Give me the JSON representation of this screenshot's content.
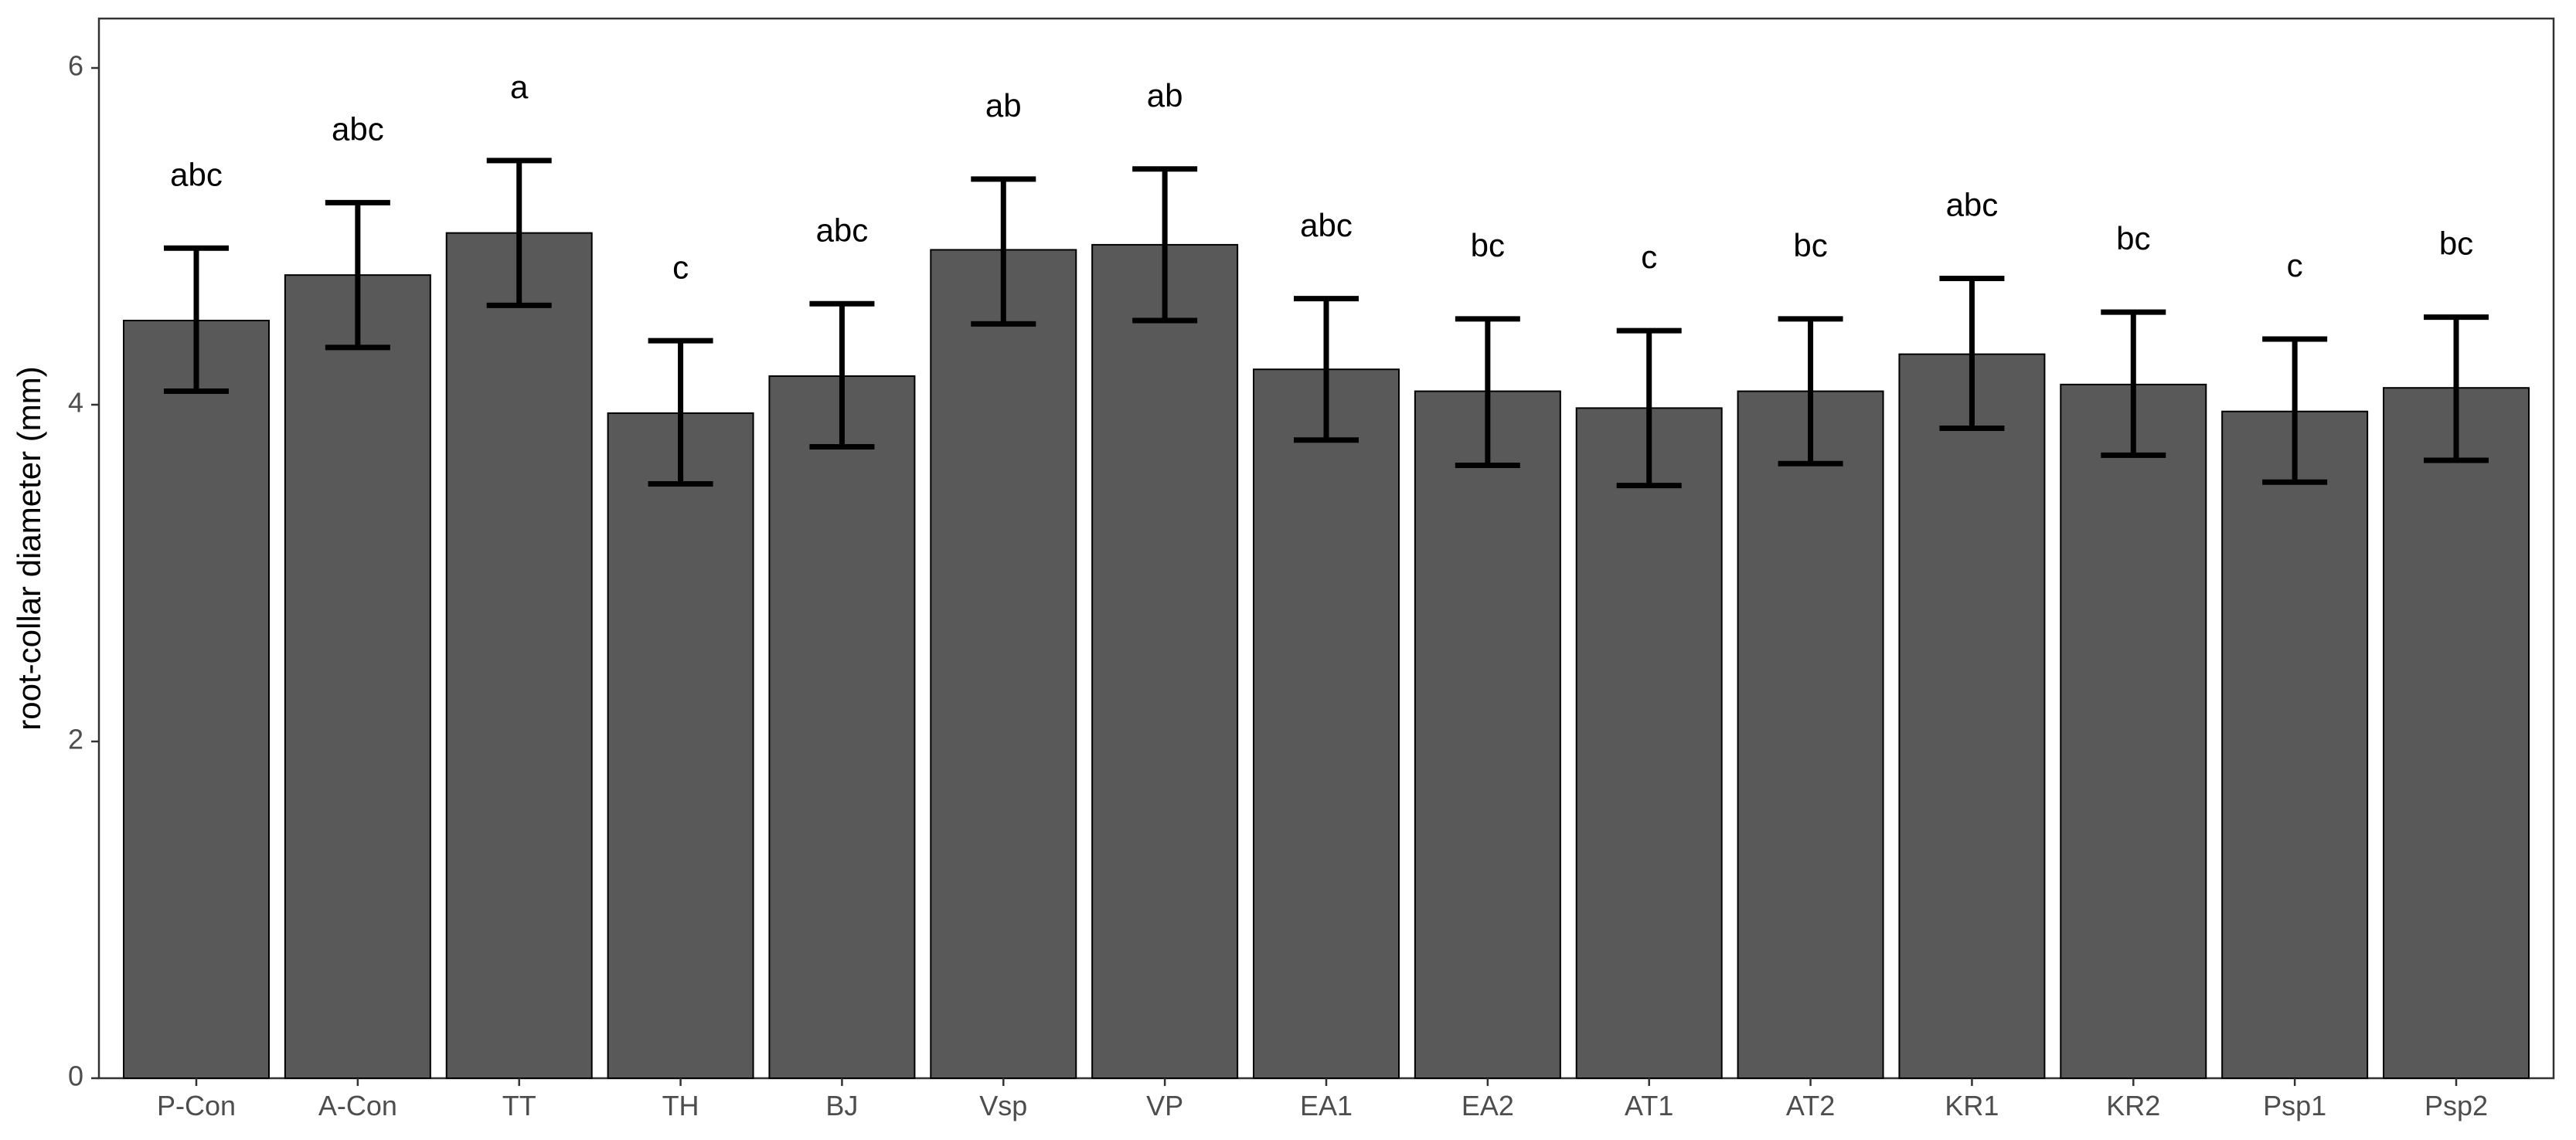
{
  "chart_data": {
    "type": "bar",
    "title": "",
    "xlabel": "",
    "ylabel": "root-collar diameter (mm)",
    "ylim": [
      0,
      6.3
    ],
    "yticks": [
      0,
      2,
      4,
      6
    ],
    "grid": false,
    "legend": "none",
    "colors": {
      "bar_fill": "#595959",
      "bar_stroke": "#000000",
      "error_bar": "#000000"
    },
    "categories": [
      "P-Con",
      "A-Con",
      "TT",
      "TH",
      "BJ",
      "Vsp",
      "VP",
      "EA1",
      "EA2",
      "AT1",
      "AT2",
      "KR1",
      "KR2",
      "Psp1",
      "Psp2"
    ],
    "values": [
      4.5,
      4.77,
      5.02,
      3.95,
      4.17,
      4.92,
      4.95,
      4.21,
      4.08,
      3.98,
      4.08,
      4.3,
      4.12,
      3.96,
      4.1
    ],
    "error_low": [
      4.08,
      4.34,
      4.59,
      3.53,
      3.75,
      4.48,
      4.5,
      3.79,
      3.64,
      3.52,
      3.65,
      3.86,
      3.7,
      3.54,
      3.67
    ],
    "error_high": [
      4.93,
      5.2,
      5.45,
      4.38,
      4.6,
      5.34,
      5.4,
      4.63,
      4.51,
      4.44,
      4.51,
      4.75,
      4.55,
      4.39,
      4.52
    ],
    "annotations": [
      "abc",
      "abc",
      "a",
      "c",
      "abc",
      "ab",
      "ab",
      "abc",
      "bc",
      "c",
      "bc",
      "abc",
      "bc",
      "c",
      "bc"
    ]
  }
}
